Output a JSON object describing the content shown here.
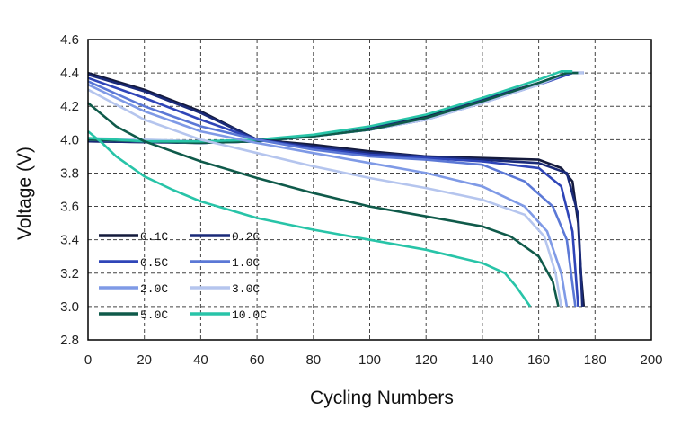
{
  "chart_data": {
    "type": "line",
    "title": "",
    "xlabel": "Cycling Numbers",
    "ylabel": "Voltage (V)",
    "xlim": [
      0,
      200
    ],
    "ylim": [
      2.8,
      4.6
    ],
    "xticks": [
      "0",
      "20",
      "40",
      "60",
      "80",
      "100",
      "120",
      "140",
      "160",
      "180",
      "200"
    ],
    "yticks": [
      "2.8",
      "3.0",
      "3.2",
      "3.4",
      "3.6",
      "3.8",
      "4.0",
      "4.2",
      "4.4",
      "4.6"
    ],
    "grid": true,
    "legend_position": "bottom-left",
    "series": [
      {
        "name": "0.1C",
        "color": "#141a3c",
        "discharge": [
          [
            0,
            4.4
          ],
          [
            20,
            4.3
          ],
          [
            40,
            4.17
          ],
          [
            60,
            4.0
          ],
          [
            80,
            3.97
          ],
          [
            100,
            3.93
          ],
          [
            120,
            3.9
          ],
          [
            140,
            3.89
          ],
          [
            160,
            3.88
          ],
          [
            168,
            3.83
          ],
          [
            172,
            3.75
          ],
          [
            174,
            3.5
          ],
          [
            175,
            3.2
          ],
          [
            176,
            3.0
          ]
        ],
        "charge": [
          [
            0,
            3.99
          ],
          [
            40,
            3.98
          ],
          [
            60,
            3.99
          ],
          [
            80,
            4.02
          ],
          [
            100,
            4.07
          ],
          [
            120,
            4.14
          ],
          [
            140,
            4.24
          ],
          [
            160,
            4.34
          ],
          [
            170,
            4.4
          ],
          [
            176,
            4.4
          ]
        ]
      },
      {
        "name": "0.2C",
        "color": "#1a2a78",
        "discharge": [
          [
            0,
            4.39
          ],
          [
            20,
            4.29
          ],
          [
            40,
            4.16
          ],
          [
            60,
            4.0
          ],
          [
            80,
            3.96
          ],
          [
            100,
            3.92
          ],
          [
            120,
            3.9
          ],
          [
            140,
            3.88
          ],
          [
            160,
            3.86
          ],
          [
            170,
            3.8
          ],
          [
            174,
            3.55
          ],
          [
            175,
            3.2
          ],
          [
            175.5,
            3.0
          ]
        ],
        "charge": [
          [
            0,
            3.99
          ],
          [
            40,
            3.98
          ],
          [
            60,
            3.99
          ],
          [
            80,
            4.02
          ],
          [
            100,
            4.07
          ],
          [
            120,
            4.13
          ],
          [
            140,
            4.24
          ],
          [
            160,
            4.34
          ],
          [
            172,
            4.4
          ],
          [
            176,
            4.4
          ]
        ]
      },
      {
        "name": "0.5C",
        "color": "#2f45b8",
        "discharge": [
          [
            0,
            4.37
          ],
          [
            20,
            4.25
          ],
          [
            40,
            4.12
          ],
          [
            60,
            4.0
          ],
          [
            80,
            3.95
          ],
          [
            100,
            3.91
          ],
          [
            120,
            3.89
          ],
          [
            140,
            3.87
          ],
          [
            160,
            3.83
          ],
          [
            168,
            3.72
          ],
          [
            172,
            3.45
          ],
          [
            174,
            3.0
          ]
        ],
        "charge": [
          [
            0,
            4.0
          ],
          [
            40,
            3.98
          ],
          [
            60,
            3.99
          ],
          [
            80,
            4.02
          ],
          [
            100,
            4.06
          ],
          [
            120,
            4.12
          ],
          [
            140,
            4.23
          ],
          [
            160,
            4.33
          ],
          [
            172,
            4.4
          ],
          [
            176,
            4.4
          ]
        ]
      },
      {
        "name": "1.0C",
        "color": "#5b78d6",
        "discharge": [
          [
            0,
            4.35
          ],
          [
            20,
            4.2
          ],
          [
            40,
            4.08
          ],
          [
            60,
            4.0
          ],
          [
            80,
            3.94
          ],
          [
            100,
            3.9
          ],
          [
            120,
            3.88
          ],
          [
            140,
            3.85
          ],
          [
            155,
            3.75
          ],
          [
            165,
            3.6
          ],
          [
            170,
            3.4
          ],
          [
            173,
            3.0
          ]
        ],
        "charge": [
          [
            0,
            4.0
          ],
          [
            40,
            3.98
          ],
          [
            60,
            3.99
          ],
          [
            80,
            4.02
          ],
          [
            100,
            4.06
          ],
          [
            120,
            4.12
          ],
          [
            140,
            4.22
          ],
          [
            160,
            4.33
          ],
          [
            170,
            4.4
          ],
          [
            176,
            4.4
          ]
        ]
      },
      {
        "name": "2.0C",
        "color": "#7f9ae6",
        "discharge": [
          [
            0,
            4.33
          ],
          [
            20,
            4.17
          ],
          [
            40,
            4.05
          ],
          [
            60,
            3.98
          ],
          [
            80,
            3.92
          ],
          [
            100,
            3.86
          ],
          [
            120,
            3.8
          ],
          [
            140,
            3.72
          ],
          [
            155,
            3.6
          ],
          [
            163,
            3.45
          ],
          [
            168,
            3.2
          ],
          [
            170,
            3.0
          ]
        ],
        "charge": [
          [
            0,
            4.0
          ],
          [
            40,
            3.98
          ],
          [
            60,
            3.99
          ],
          [
            80,
            4.02
          ],
          [
            100,
            4.06
          ],
          [
            120,
            4.12
          ],
          [
            140,
            4.22
          ],
          [
            160,
            4.33
          ],
          [
            170,
            4.4
          ],
          [
            176,
            4.4
          ]
        ]
      },
      {
        "name": "3.0C",
        "color": "#b5c5ee",
        "discharge": [
          [
            0,
            4.3
          ],
          [
            20,
            4.12
          ],
          [
            40,
            4.0
          ],
          [
            60,
            3.92
          ],
          [
            80,
            3.84
          ],
          [
            100,
            3.77
          ],
          [
            120,
            3.71
          ],
          [
            140,
            3.64
          ],
          [
            155,
            3.55
          ],
          [
            162,
            3.42
          ],
          [
            166,
            3.2
          ],
          [
            168,
            3.0
          ]
        ],
        "charge": [
          [
            0,
            4.01
          ],
          [
            40,
            3.99
          ],
          [
            60,
            3.99
          ],
          [
            80,
            4.02
          ],
          [
            100,
            4.06
          ],
          [
            120,
            4.12
          ],
          [
            140,
            4.22
          ],
          [
            160,
            4.33
          ],
          [
            170,
            4.4
          ],
          [
            176,
            4.4
          ]
        ]
      },
      {
        "name": "5.0C",
        "color": "#0f5a4a",
        "discharge": [
          [
            0,
            4.22
          ],
          [
            10,
            4.08
          ],
          [
            20,
            3.99
          ],
          [
            40,
            3.87
          ],
          [
            60,
            3.77
          ],
          [
            80,
            3.68
          ],
          [
            100,
            3.6
          ],
          [
            120,
            3.54
          ],
          [
            140,
            3.48
          ],
          [
            150,
            3.42
          ],
          [
            160,
            3.3
          ],
          [
            165,
            3.15
          ],
          [
            167,
            3.0
          ]
        ],
        "charge": [
          [
            0,
            4.0
          ],
          [
            40,
            3.98
          ],
          [
            60,
            3.99
          ],
          [
            80,
            4.02
          ],
          [
            100,
            4.06
          ],
          [
            120,
            4.13
          ],
          [
            140,
            4.23
          ],
          [
            160,
            4.34
          ],
          [
            170,
            4.4
          ],
          [
            174,
            4.4
          ]
        ]
      },
      {
        "name": "10.0C",
        "color": "#28c4a8",
        "discharge": [
          [
            0,
            4.05
          ],
          [
            5,
            3.98
          ],
          [
            10,
            3.9
          ],
          [
            20,
            3.78
          ],
          [
            30,
            3.7
          ],
          [
            40,
            3.63
          ],
          [
            60,
            3.53
          ],
          [
            80,
            3.46
          ],
          [
            100,
            3.4
          ],
          [
            120,
            3.34
          ],
          [
            140,
            3.26
          ],
          [
            148,
            3.2
          ],
          [
            152,
            3.12
          ],
          [
            157,
            3.0
          ]
        ],
        "charge": [
          [
            0,
            4.01
          ],
          [
            20,
            3.99
          ],
          [
            40,
            3.99
          ],
          [
            60,
            4.0
          ],
          [
            80,
            4.03
          ],
          [
            100,
            4.08
          ],
          [
            120,
            4.15
          ],
          [
            140,
            4.25
          ],
          [
            160,
            4.36
          ],
          [
            168,
            4.41
          ],
          [
            172,
            4.41
          ]
        ]
      }
    ]
  }
}
